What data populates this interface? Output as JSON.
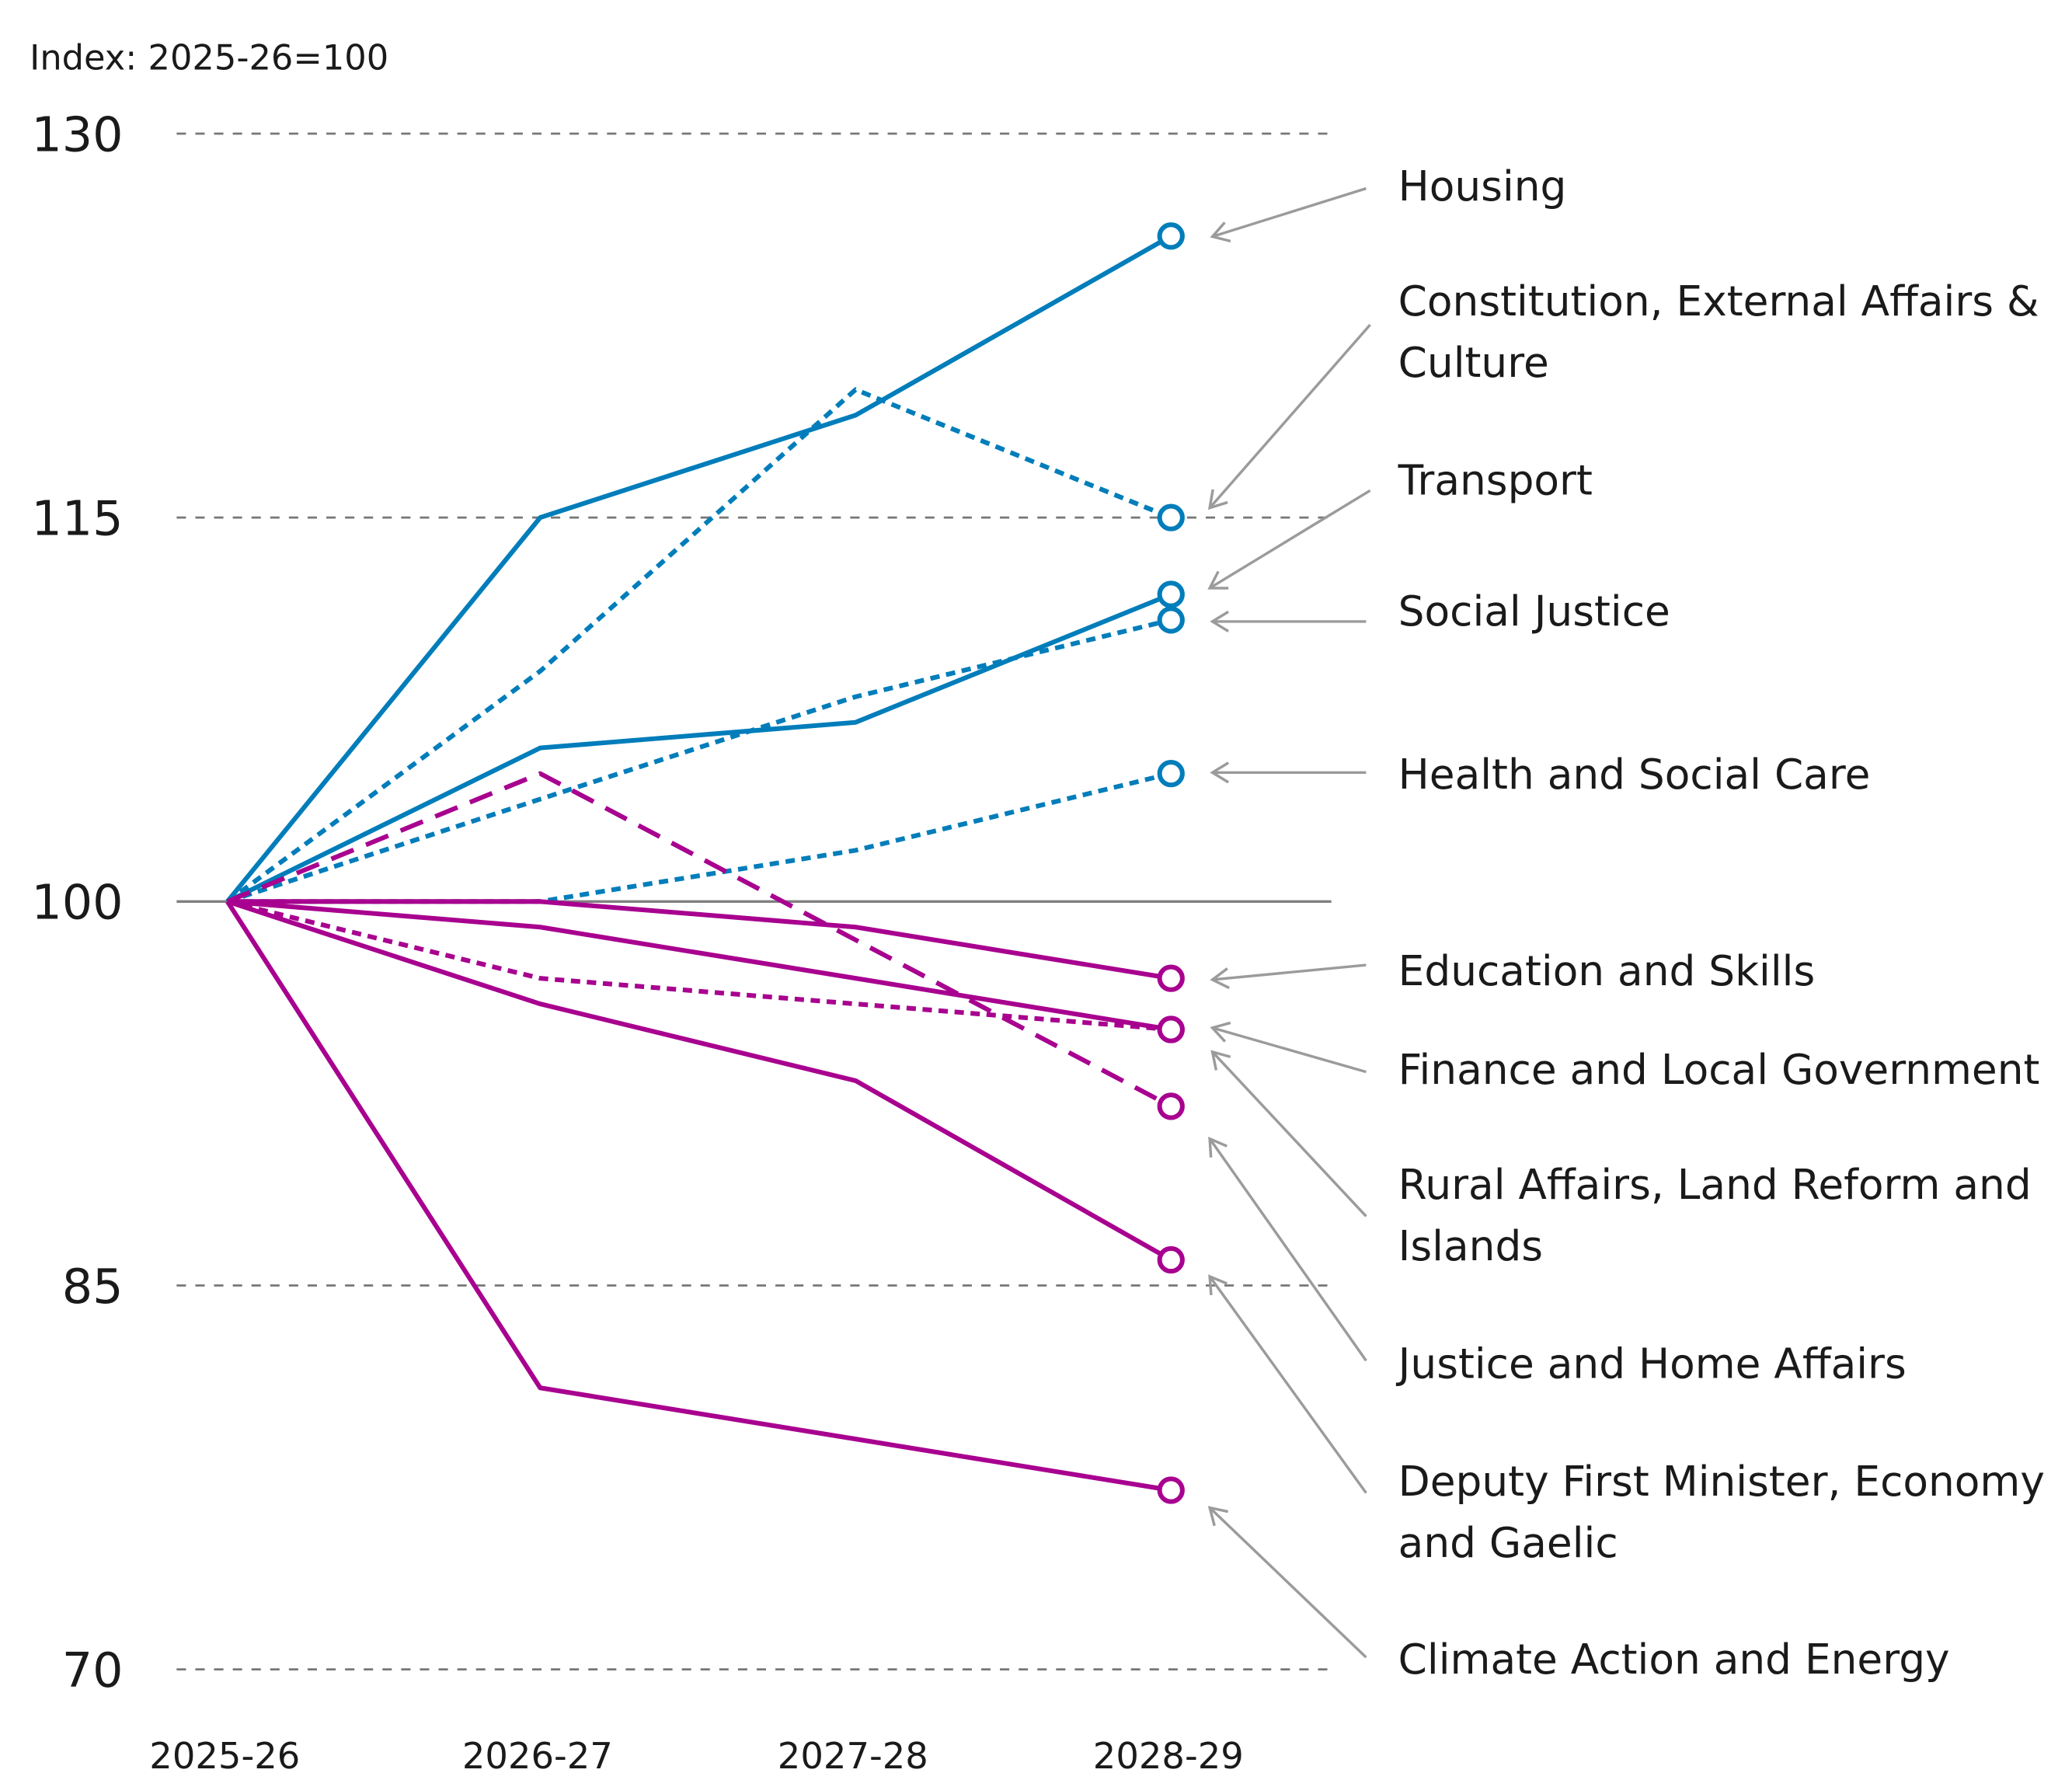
{
  "chart_data": {
    "type": "line",
    "ylabel": "Index: 2025-26=100",
    "x": [
      "2025-26",
      "2026-27",
      "2027-28",
      "2028-29"
    ],
    "ylim": [
      70,
      130
    ],
    "yticks": [
      "70",
      "85",
      "100",
      "115",
      "130"
    ],
    "ytick_values": [
      70,
      85,
      100,
      115,
      130
    ],
    "grid": "dashed horizontal at tick values; solid baseline at 100",
    "legend": "right-side labels with arrows pointing to 2028-29 end markers",
    "colors": {
      "increase": "#007dba",
      "decrease": "#a8008f",
      "baseline": "#808080",
      "arrow": "#9b9b9b"
    },
    "series": [
      {
        "name": "Housing",
        "lines": [
          "Housing"
        ],
        "values": [
          100,
          115,
          119,
          126
        ],
        "color": "#007dba",
        "style": "solid"
      },
      {
        "name": "Constitution, External Affairs & Culture",
        "lines": [
          "Constitution, External Affairs &",
          "Culture"
        ],
        "values": [
          100,
          109,
          120,
          115
        ],
        "color": "#007dba",
        "style": "dotted"
      },
      {
        "name": "Transport",
        "lines": [
          "Transport"
        ],
        "values": [
          100,
          106,
          107,
          112
        ],
        "color": "#007dba",
        "style": "solid"
      },
      {
        "name": "Social Justice",
        "lines": [
          "Social Justice"
        ],
        "values": [
          100,
          104,
          108,
          111
        ],
        "color": "#007dba",
        "style": "dotted"
      },
      {
        "name": "Health and Social Care",
        "lines": [
          "Health and Social Care"
        ],
        "values": [
          100,
          100,
          102,
          105
        ],
        "color": "#007dba",
        "style": "dotted"
      },
      {
        "name": "Education and Skills",
        "lines": [
          "Education and Skills"
        ],
        "values": [
          100,
          100,
          99,
          97
        ],
        "color": "#a8008f",
        "style": "solid"
      },
      {
        "name": "Finance and Local Government",
        "lines": [
          "Finance and Local Government"
        ],
        "values": [
          100,
          99,
          97,
          95
        ],
        "color": "#a8008f",
        "style": "solid"
      },
      {
        "name": "Rural Affairs, Land Reform and Islands",
        "lines": [
          "Rural Affairs, Land Reform and",
          "Islands"
        ],
        "values": [
          100,
          97,
          96,
          95
        ],
        "color": "#a8008f",
        "style": "dotted"
      },
      {
        "name": "Justice and Home Affairs",
        "lines": [
          "Justice and Home Affairs"
        ],
        "values": [
          100,
          105,
          98.5,
          92
        ],
        "color": "#a8008f",
        "style": "dashed"
      },
      {
        "name": "Deputy First Minister, Economy and Gaelic",
        "lines": [
          "Deputy First Minister, Economy",
          "and Gaelic"
        ],
        "values": [
          100,
          96,
          93,
          86
        ],
        "color": "#a8008f",
        "style": "solid"
      },
      {
        "name": "Climate Action and Energy",
        "lines": [
          "Climate Action and Energy"
        ],
        "values": [
          100,
          81,
          79,
          77
        ],
        "color": "#a8008f",
        "style": "solid"
      }
    ]
  }
}
